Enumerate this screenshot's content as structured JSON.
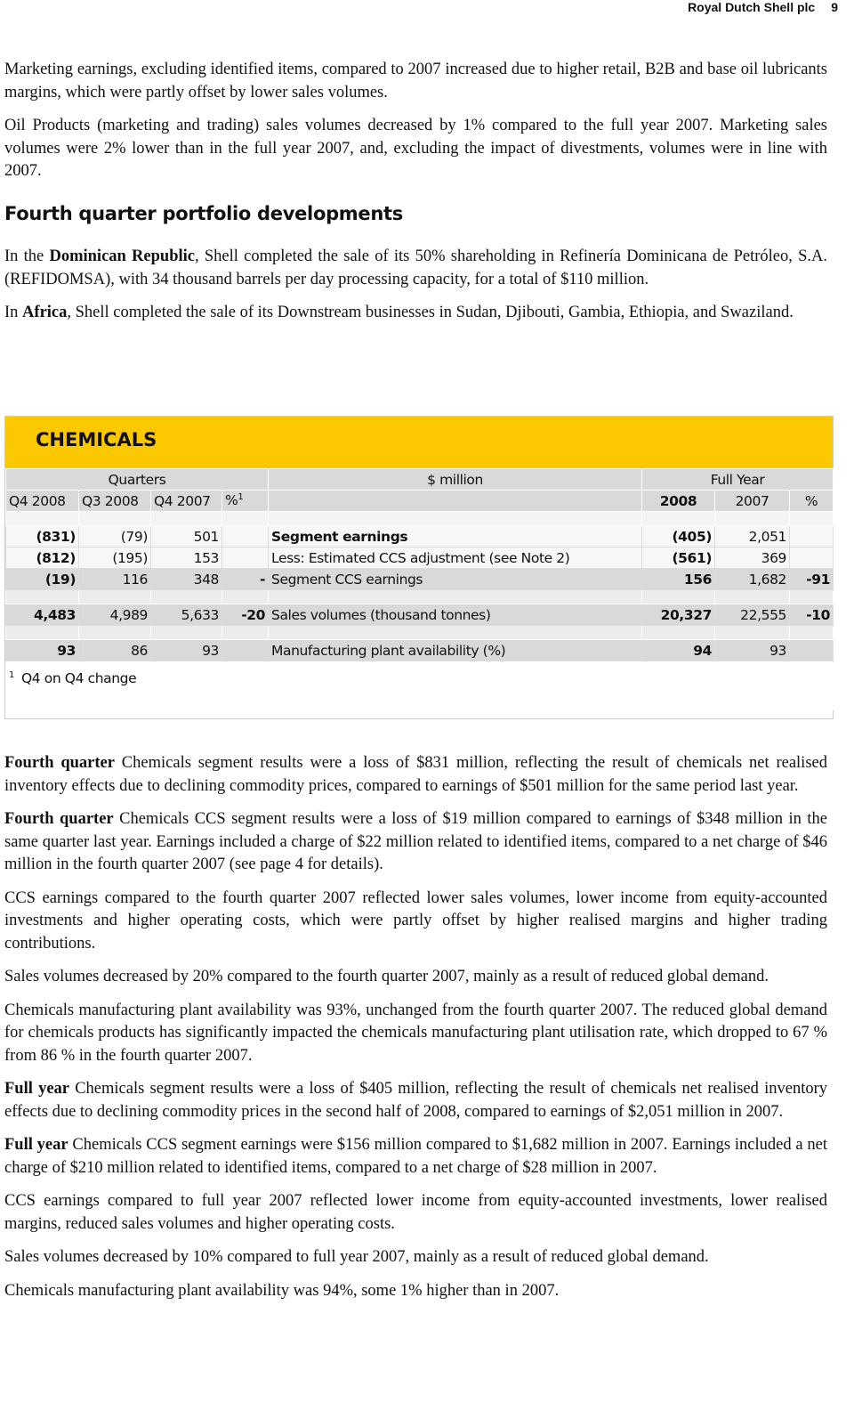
{
  "header": {
    "company": "Royal Dutch Shell plc",
    "page": "9"
  },
  "intro": [
    "Marketing earnings, excluding identified items, compared to 2007 increased due to higher retail, B2B and base oil lubricants margins, which were partly offset by lower sales volumes.",
    "Oil Products (marketing and trading) sales volumes decreased by 1% compared to the full year 2007. Marketing sales volumes were 2% lower than in the full year 2007, and, excluding the impact of divestments, volumes were in line with 2007."
  ],
  "portfolio": {
    "title": "Fourth quarter portfolio developments",
    "paragraphs": [
      [
        {
          "text": "In the "
        },
        {
          "text": "Dominican Republic",
          "bold": true
        },
        {
          "text": ", Shell completed the sale of its 50% shareholding in Refinería Dominicana de Petróleo, S.A. (REFIDOMSA), with 34 thousand barrels per day processing capacity, for a total of $110 million."
        }
      ],
      [
        {
          "text": "In "
        },
        {
          "text": "Africa",
          "bold": true
        },
        {
          "text": ", Shell completed the sale of its Downstream businesses in Sudan, Djibouti, Gambia, Ethiopia, and Swaziland."
        }
      ]
    ]
  },
  "table": {
    "title": "CHEMICALS",
    "group_headers": [
      "Quarters",
      "$ million",
      "Full Year"
    ],
    "columns": [
      "Q4 2008",
      "Q3 2008",
      "Q4 2007",
      {
        "text": "%",
        "sup": "1"
      },
      null,
      "2008",
      "2007",
      "%"
    ],
    "rows": [
      {
        "cells": [
          "(831)",
          "(79)",
          "501",
          null,
          "Segment earnings",
          "(405)",
          "2,051",
          null
        ],
        "bold_label": true
      },
      {
        "cells": [
          "(812)",
          "(195)",
          "153",
          null,
          "Less: Estimated CCS adjustment (see Note 2)",
          "(561)",
          "369",
          null
        ]
      },
      {
        "cells": [
          "(19)",
          "116",
          "348",
          "-",
          "Segment CCS earnings",
          "156",
          "1,682",
          "-91"
        ]
      },
      {
        "cells": [
          "4,483",
          "4,989",
          "5,633",
          "-20",
          "Sales volumes (thousand tonnes)",
          "20,327",
          "22,555",
          "-10"
        ]
      },
      {
        "cells": [
          "93",
          "86",
          "93",
          null,
          "Manufacturing plant availability (%)",
          "94",
          "93",
          null
        ]
      }
    ],
    "footnote": {
      "marker": "1",
      "text": "Q4 on Q4 change"
    }
  },
  "body": [
    [
      {
        "text": "Fourth quarter",
        "bold": true
      },
      {
        "text": " Chemicals segment results were a loss of $831 million, reflecting the result of chemicals net realised inventory effects due to declining commodity prices, compared to earnings of $501 million for the same period last year."
      }
    ],
    [
      {
        "text": "Fourth quarter",
        "bold": true
      },
      {
        "text": " Chemicals CCS segment results were a loss of $19 million compared to earnings of $348 million in the same quarter last year. Earnings included a charge of $22 million related to identified items, compared to a net charge of $46 million in the fourth quarter 2007 (see page 4 for details)."
      }
    ],
    "CCS earnings compared to the fourth quarter 2007 reflected lower sales volumes, lower income from equity-accounted investments and higher operating costs, which were partly offset by higher realised margins and higher trading contributions.",
    "Sales volumes decreased by 20% compared to the fourth quarter 2007, mainly as a result of reduced global demand.",
    "Chemicals manufacturing plant availability was 93%, unchanged from the fourth quarter 2007. The reduced global demand for chemicals products has significantly impacted the chemicals manufacturing plant utilisation rate, which dropped to 67 % from 86 % in the fourth quarter 2007.",
    [
      {
        "text": "Full year",
        "bold": true
      },
      {
        "text": " Chemicals segment results were a loss of $405 million, reflecting the result of chemicals net realised inventory effects due to declining commodity prices in the second half of 2008, compared to earnings of $2,051 million in 2007."
      }
    ],
    [
      {
        "text": "Full year",
        "bold": true
      },
      {
        "text": " Chemicals CCS segment earnings were $156 million compared to $1,682 million in 2007. Earnings included a net charge of $210 million related to identified items, compared to a net charge of $28 million in 2007."
      }
    ],
    "CCS earnings compared to full year 2007 reflected lower income from equity-accounted investments, lower realised margins, reduced sales volumes and higher operating costs.",
    "Sales volumes decreased by 10% compared to full year 2007, mainly as a result of reduced global demand.",
    "Chemicals manufacturing plant availability was 94%, some 1% higher than in 2007."
  ]
}
